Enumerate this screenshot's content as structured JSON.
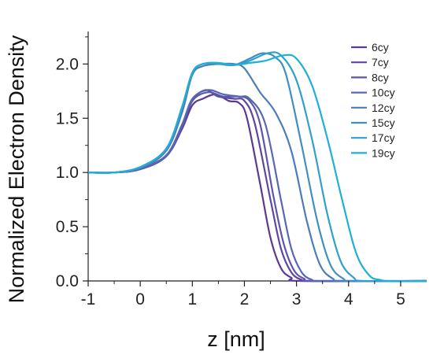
{
  "chart_data": {
    "type": "line",
    "title": "",
    "xlabel": "z [nm]",
    "ylabel": "Normalized Electron Density",
    "xlim": [
      -1,
      5.5
    ],
    "ylim": [
      0,
      2.3
    ],
    "xticks": [
      -1,
      0,
      1,
      2,
      3,
      4,
      5
    ],
    "yticks": [
      0.0,
      0.5,
      1.0,
      1.5,
      2.0
    ],
    "xtick_labels": [
      "-1",
      "0",
      "1",
      "2",
      "3",
      "4",
      "5"
    ],
    "ytick_labels": [
      "0.0",
      "0.5",
      "1.0",
      "1.5",
      "2.0"
    ],
    "grid": false,
    "legend_position": "top-right",
    "series": [
      {
        "name": "6cy",
        "color": "#5b3a94",
        "points": [
          [
            -1,
            1.0
          ],
          [
            -0.5,
            1.0
          ],
          [
            0,
            1.03
          ],
          [
            0.5,
            1.15
          ],
          [
            0.8,
            1.4
          ],
          [
            1.0,
            1.62
          ],
          [
            1.2,
            1.68
          ],
          [
            1.45,
            1.72
          ],
          [
            1.7,
            1.66
          ],
          [
            1.9,
            1.64
          ],
          [
            2.05,
            1.5
          ],
          [
            2.3,
            0.9
          ],
          [
            2.5,
            0.4
          ],
          [
            2.7,
            0.12
          ],
          [
            2.9,
            0.03
          ],
          [
            3.1,
            0.0
          ],
          [
            5.5,
            0.0
          ]
        ]
      },
      {
        "name": "7cy",
        "color": "#5e46a0",
        "points": [
          [
            -1,
            1.0
          ],
          [
            -0.5,
            1.0
          ],
          [
            0,
            1.03
          ],
          [
            0.5,
            1.15
          ],
          [
            0.8,
            1.42
          ],
          [
            1.0,
            1.66
          ],
          [
            1.25,
            1.76
          ],
          [
            1.5,
            1.7
          ],
          [
            1.8,
            1.68
          ],
          [
            2.0,
            1.66
          ],
          [
            2.2,
            1.45
          ],
          [
            2.5,
            0.75
          ],
          [
            2.7,
            0.3
          ],
          [
            2.9,
            0.08
          ],
          [
            3.1,
            0.01
          ],
          [
            3.3,
            0.0
          ],
          [
            5.5,
            0.0
          ]
        ]
      },
      {
        "name": "8cy",
        "color": "#5c56ac",
        "points": [
          [
            -1,
            1.0
          ],
          [
            -0.5,
            1.0
          ],
          [
            0,
            1.03
          ],
          [
            0.5,
            1.15
          ],
          [
            0.8,
            1.42
          ],
          [
            1.0,
            1.66
          ],
          [
            1.3,
            1.74
          ],
          [
            1.6,
            1.7
          ],
          [
            1.9,
            1.7
          ],
          [
            2.1,
            1.66
          ],
          [
            2.3,
            1.45
          ],
          [
            2.55,
            0.8
          ],
          [
            2.75,
            0.35
          ],
          [
            2.95,
            0.1
          ],
          [
            3.15,
            0.02
          ],
          [
            3.35,
            0.0
          ],
          [
            5.5,
            0.0
          ]
        ]
      },
      {
        "name": "10cy",
        "color": "#5668b4",
        "points": [
          [
            -1,
            1.0
          ],
          [
            -0.5,
            1.0
          ],
          [
            0,
            1.04
          ],
          [
            0.5,
            1.16
          ],
          [
            0.8,
            1.44
          ],
          [
            1.0,
            1.68
          ],
          [
            1.3,
            1.76
          ],
          [
            1.6,
            1.72
          ],
          [
            1.9,
            1.7
          ],
          [
            2.1,
            1.68
          ],
          [
            2.4,
            1.45
          ],
          [
            2.7,
            0.75
          ],
          [
            2.9,
            0.3
          ],
          [
            3.1,
            0.08
          ],
          [
            3.3,
            0.01
          ],
          [
            3.5,
            0.0
          ],
          [
            5.5,
            0.0
          ]
        ]
      },
      {
        "name": "12cy",
        "color": "#4d7cba",
        "points": [
          [
            -1,
            1.0
          ],
          [
            -0.5,
            1.0
          ],
          [
            0,
            1.04
          ],
          [
            0.5,
            1.2
          ],
          [
            0.8,
            1.55
          ],
          [
            1.0,
            1.9
          ],
          [
            1.2,
            1.98
          ],
          [
            1.5,
            2.0
          ],
          [
            1.8,
            2.0
          ],
          [
            2.0,
            1.96
          ],
          [
            2.3,
            1.74
          ],
          [
            2.6,
            1.55
          ],
          [
            2.9,
            1.2
          ],
          [
            3.2,
            0.55
          ],
          [
            3.45,
            0.15
          ],
          [
            3.7,
            0.02
          ],
          [
            3.9,
            0.0
          ],
          [
            5.5,
            0.0
          ]
        ]
      },
      {
        "name": "15cy",
        "color": "#3f8fc2",
        "points": [
          [
            -1,
            1.0
          ],
          [
            -0.5,
            1.0
          ],
          [
            0,
            1.05
          ],
          [
            0.5,
            1.22
          ],
          [
            0.8,
            1.6
          ],
          [
            1.0,
            1.92
          ],
          [
            1.2,
            2.0
          ],
          [
            1.5,
            2.0
          ],
          [
            1.8,
            1.99
          ],
          [
            2.1,
            2.05
          ],
          [
            2.35,
            2.1
          ],
          [
            2.6,
            2.06
          ],
          [
            2.8,
            1.9
          ],
          [
            3.1,
            1.25
          ],
          [
            3.4,
            0.55
          ],
          [
            3.65,
            0.15
          ],
          [
            3.9,
            0.02
          ],
          [
            4.1,
            0.0
          ],
          [
            5.5,
            0.0
          ]
        ]
      },
      {
        "name": "17cy",
        "color": "#2fa0cc",
        "points": [
          [
            -1,
            1.0
          ],
          [
            -0.5,
            1.0
          ],
          [
            0,
            1.05
          ],
          [
            0.5,
            1.22
          ],
          [
            0.8,
            1.6
          ],
          [
            1.0,
            1.92
          ],
          [
            1.2,
            2.0
          ],
          [
            1.5,
            2.01
          ],
          [
            1.8,
            1.99
          ],
          [
            2.1,
            2.03
          ],
          [
            2.45,
            2.1
          ],
          [
            2.7,
            2.08
          ],
          [
            3.0,
            1.85
          ],
          [
            3.3,
            1.3
          ],
          [
            3.6,
            0.6
          ],
          [
            3.85,
            0.18
          ],
          [
            4.1,
            0.03
          ],
          [
            4.3,
            0.0
          ],
          [
            5.5,
            0.0
          ]
        ]
      },
      {
        "name": "19cy",
        "color": "#20afd6",
        "points": [
          [
            -1,
            1.0
          ],
          [
            -0.5,
            1.0
          ],
          [
            0,
            1.05
          ],
          [
            0.5,
            1.22
          ],
          [
            0.8,
            1.6
          ],
          [
            1.0,
            1.92
          ],
          [
            1.2,
            2.0
          ],
          [
            1.5,
            2.01
          ],
          [
            1.8,
            1.99
          ],
          [
            2.1,
            2.01
          ],
          [
            2.4,
            2.03
          ],
          [
            2.75,
            2.08
          ],
          [
            3.0,
            2.05
          ],
          [
            3.3,
            1.8
          ],
          [
            3.6,
            1.3
          ],
          [
            3.9,
            0.7
          ],
          [
            4.15,
            0.25
          ],
          [
            4.4,
            0.05
          ],
          [
            4.6,
            0.01
          ],
          [
            4.8,
            0.0
          ],
          [
            5.5,
            0.0
          ]
        ]
      }
    ]
  }
}
